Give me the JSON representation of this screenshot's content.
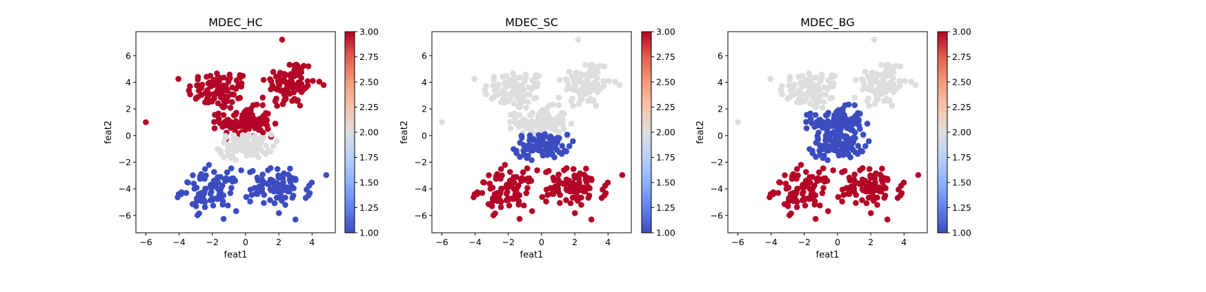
{
  "chart_data": [
    {
      "type": "scatter",
      "title": "MDEC_HC",
      "xlabel": "feat1",
      "ylabel": "feat2",
      "xlim": [
        -6.6,
        5.4
      ],
      "ylim": [
        -7.3,
        7.8
      ],
      "xticks": [
        -6,
        -4,
        -2,
        0,
        2,
        4
      ],
      "yticks": [
        -6,
        -4,
        -2,
        0,
        2,
        4,
        6
      ],
      "colorbar": {
        "cmap": "coolwarm",
        "range": [
          1.0,
          3.0
        ],
        "ticks": [
          "1.00",
          "1.25",
          "1.50",
          "1.75",
          "2.00",
          "2.25",
          "2.50",
          "2.75",
          "3.00"
        ]
      },
      "cluster_values": {
        "upper_left": 3,
        "upper_right": 3,
        "center": 3,
        "middle_band": 2,
        "lower_left": 1,
        "lower_right": 1
      }
    },
    {
      "type": "scatter",
      "title": "MDEC_SC",
      "xlabel": "feat1",
      "ylabel": "feat2",
      "xlim": [
        -6.6,
        5.4
      ],
      "ylim": [
        -7.3,
        7.8
      ],
      "xticks": [
        -6,
        -4,
        -2,
        0,
        2,
        4
      ],
      "yticks": [
        -6,
        -4,
        -2,
        0,
        2,
        4,
        6
      ],
      "colorbar": {
        "cmap": "coolwarm",
        "range": [
          1.0,
          3.0
        ],
        "ticks": [
          "1.00",
          "1.25",
          "1.50",
          "1.75",
          "2.00",
          "2.25",
          "2.50",
          "2.75",
          "3.00"
        ]
      },
      "cluster_values": {
        "upper_left": 2,
        "upper_right": 2,
        "center": 2,
        "middle_band": 1,
        "lower_left": 3,
        "lower_right": 3
      }
    },
    {
      "type": "scatter",
      "title": "MDEC_BG",
      "xlabel": "feat1",
      "ylabel": "feat2",
      "xlim": [
        -6.6,
        5.4
      ],
      "ylim": [
        -7.3,
        7.8
      ],
      "xticks": [
        -6,
        -4,
        -2,
        0,
        2,
        4
      ],
      "yticks": [
        -6,
        -4,
        -2,
        0,
        2,
        4,
        6
      ],
      "colorbar": {
        "cmap": "coolwarm",
        "range": [
          1.0,
          3.0
        ],
        "ticks": [
          "1.00",
          "1.25",
          "1.50",
          "1.75",
          "2.00",
          "2.25",
          "2.50",
          "2.75",
          "3.00"
        ]
      },
      "cluster_values": {
        "upper_left": 2,
        "upper_right": 2,
        "center": 1,
        "middle_band": 1,
        "lower_left": 3,
        "lower_right": 3
      }
    }
  ],
  "clusters": {
    "upper_left": {
      "center": [
        -1.6,
        3.4
      ],
      "spread": [
        0.95,
        0.75
      ],
      "n": 90
    },
    "upper_right": {
      "center": [
        2.7,
        3.9
      ],
      "spread": [
        0.75,
        0.95
      ],
      "n": 90
    },
    "center": {
      "center": [
        0.0,
        1.0
      ],
      "spread": [
        0.75,
        0.55
      ],
      "n": 110
    },
    "middle_band": {
      "center": [
        0.0,
        -0.8
      ],
      "spread": [
        0.8,
        0.45
      ],
      "n": 90
    },
    "lower_left": {
      "center": [
        -2.1,
        -4.1
      ],
      "spread": [
        0.85,
        0.75
      ],
      "n": 90
    },
    "lower_right": {
      "center": [
        2.0,
        -3.9
      ],
      "spread": [
        0.95,
        0.7
      ],
      "n": 90
    }
  },
  "colors": {
    "low": "#3b4cc0",
    "mid": "#dddddd",
    "high": "#b40426",
    "spine": "#000000"
  }
}
